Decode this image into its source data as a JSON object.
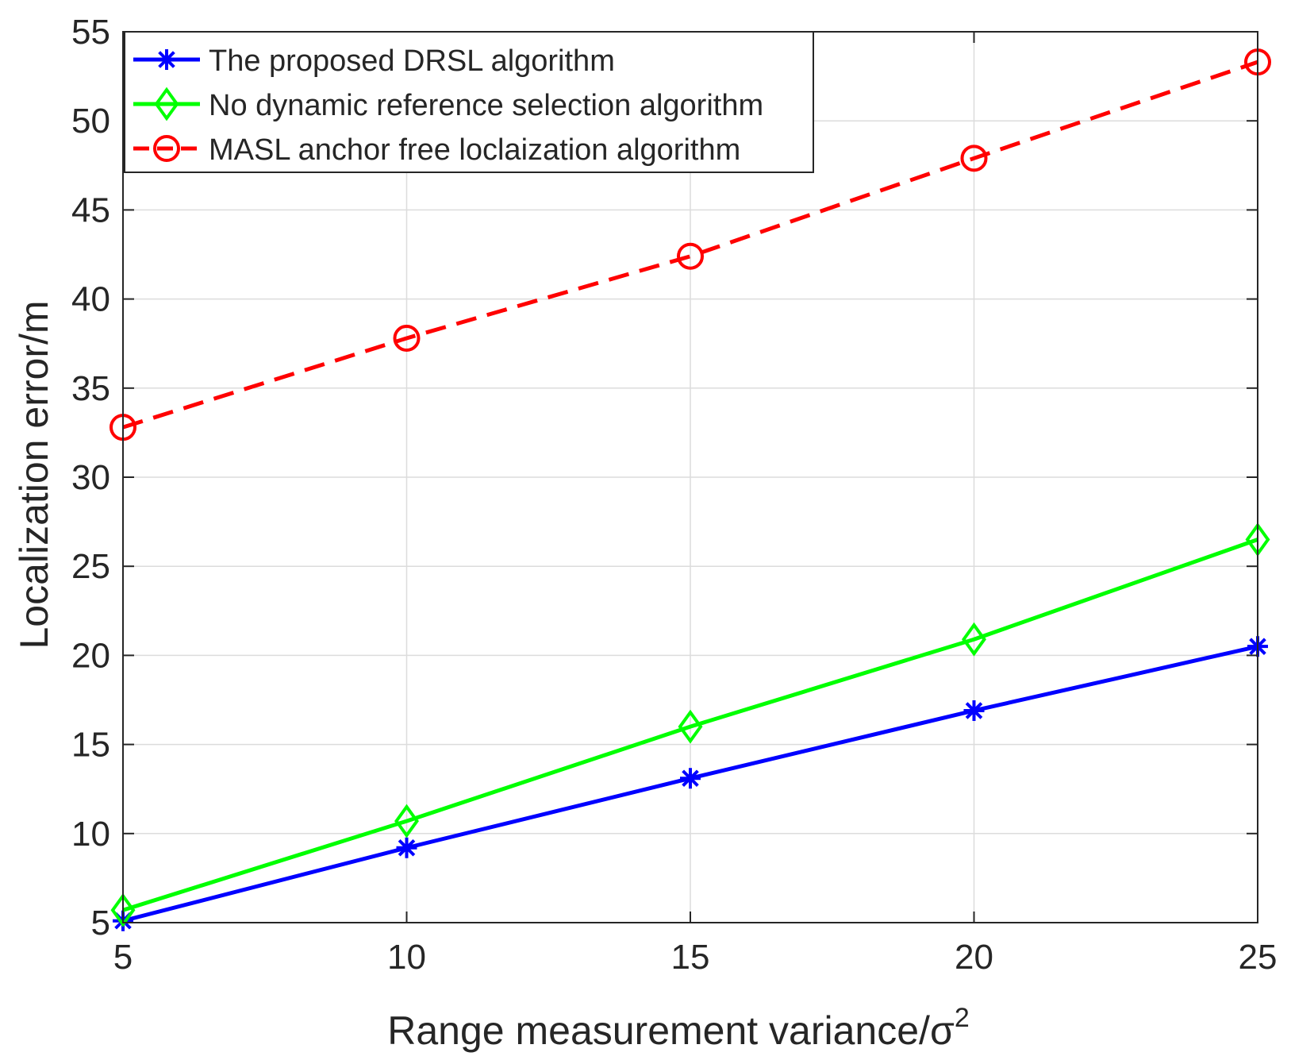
{
  "chart_data": {
    "type": "line",
    "title": "",
    "xlabel": "Range measurement variance/σ",
    "xlabel_superscript": "2",
    "ylabel": "Localization error/m",
    "x": [
      5,
      10,
      15,
      20,
      25
    ],
    "xlim": [
      5,
      25
    ],
    "ylim": [
      5,
      55
    ],
    "xticks": [
      5,
      10,
      15,
      20,
      25
    ],
    "yticks": [
      5,
      10,
      15,
      20,
      25,
      30,
      35,
      40,
      45,
      50,
      55
    ],
    "grid": true,
    "legend_position": "top-left",
    "series": [
      {
        "name": "The proposed DRSL algorithm",
        "values": [
          5.1,
          9.2,
          13.1,
          16.9,
          20.5
        ],
        "color": "#0000ff",
        "marker": "asterisk",
        "dash": "solid"
      },
      {
        "name": "No dynamic reference selection algorithm",
        "values": [
          5.7,
          10.7,
          16.0,
          20.9,
          26.5
        ],
        "color": "#00ff00",
        "marker": "diamond",
        "dash": "solid"
      },
      {
        "name": "MASL anchor free loclaization algorithm",
        "values": [
          32.8,
          37.8,
          42.4,
          47.9,
          53.3
        ],
        "color": "#ff0000",
        "marker": "circle",
        "dash": "dashed"
      }
    ]
  }
}
